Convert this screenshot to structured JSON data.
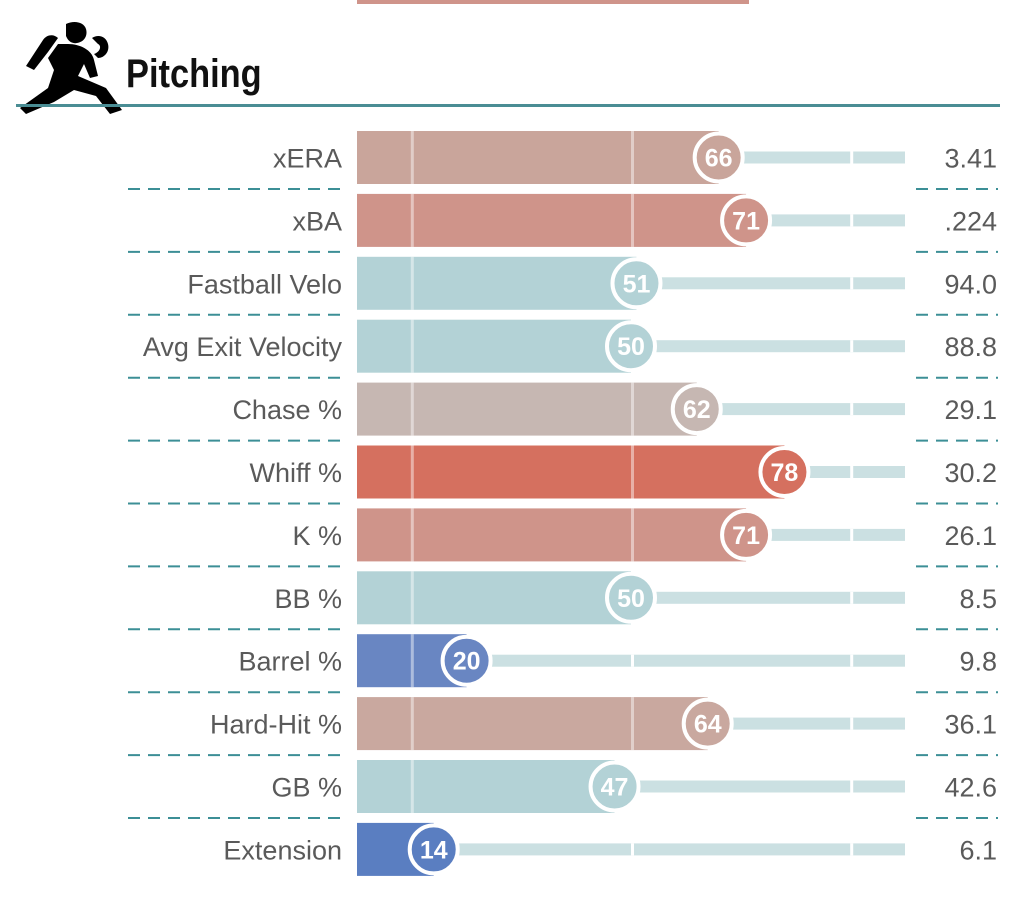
{
  "section": {
    "title": "Pitching",
    "icon": "pitcher-icon",
    "rule_color": "#4a8d94"
  },
  "colors": {
    "track": "#cbe0e2",
    "divider": "#3c8f96",
    "label": "#5a5a5a",
    "scale": {
      "low": "#3a62b0",
      "mid": "#b3d2d6",
      "high": "#d5705f"
    }
  },
  "chart_data": {
    "type": "bar",
    "title": "Pitching",
    "categories": [
      "xERA",
      "xBA",
      "Fastball Velo",
      "Avg Exit Velocity",
      "Chase %",
      "Whiff %",
      "K %",
      "BB %",
      "Barrel %",
      "Hard-Hit %",
      "GB %",
      "Extension"
    ],
    "series": [
      {
        "values": [
          66,
          71,
          51,
          50,
          62,
          78,
          71,
          50,
          20,
          64,
          47,
          14
        ]
      }
    ],
    "stat_values": [
      "3.41",
      ".224",
      "94.0",
      "88.8",
      "29.1",
      "30.2",
      "26.1",
      "8.5",
      "9.8",
      "36.1",
      "42.6",
      "6.1"
    ],
    "bar_colors": [
      "#c9a59b",
      "#cf948a",
      "#b3d2d6",
      "#b3d2d6",
      "#c6b7b2",
      "#d5705f",
      "#cf948a",
      "#b3d2d6",
      "#6986c2",
      "#c9a89f",
      "#b3d2d6",
      "#5a7ec1"
    ],
    "xlim": [
      0,
      100
    ],
    "reference_lines": [
      10,
      50,
      90
    ],
    "grid": false,
    "legend": "none"
  }
}
